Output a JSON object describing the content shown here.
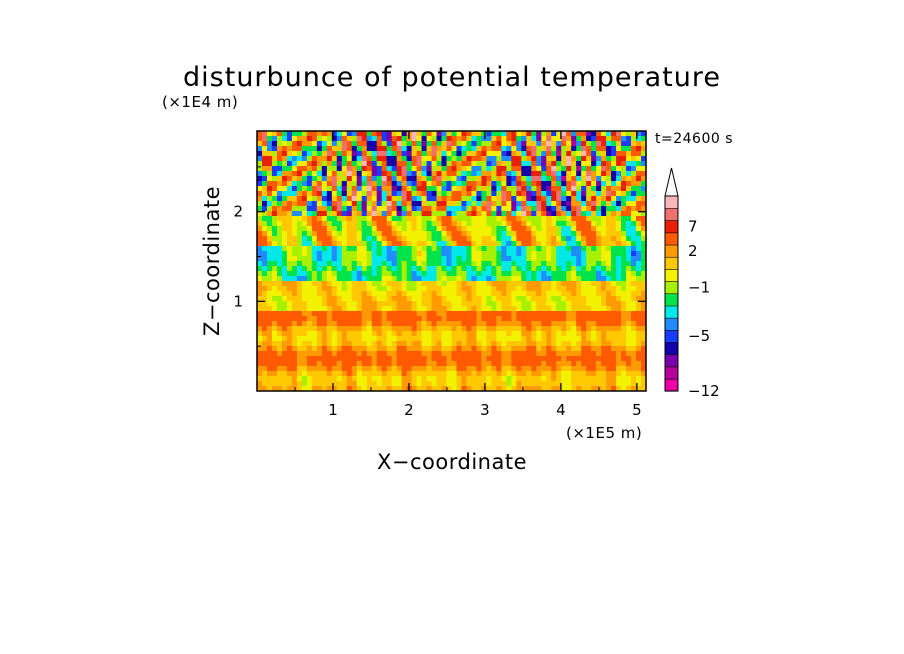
{
  "chart_data": {
    "type": "heatmap",
    "title": "disturbunce of potential temperature",
    "time_label": "t=24600 s",
    "x_axis": {
      "label": "X−coordinate",
      "unit_label": "(×1E5 m)",
      "range": [
        0,
        5.12
      ],
      "ticks": [
        1,
        2,
        3,
        4,
        5
      ],
      "tick_labels": [
        "1",
        "2",
        "3",
        "4",
        "5"
      ]
    },
    "y_axis": {
      "label": "Z−coordinate",
      "unit_label": "(×1E4 m)",
      "range": [
        0,
        2.9
      ],
      "ticks": [
        1,
        2
      ],
      "tick_labels": [
        "1",
        "2"
      ]
    },
    "colorbar": {
      "extend": "max",
      "tick_values": [
        7,
        2,
        -1,
        -5,
        -12
      ],
      "tick_labels": [
        "7",
        "2",
        "−1",
        "−5",
        "−12"
      ],
      "levels": [
        -12,
        -11,
        -9,
        -7,
        -5,
        -4,
        -3,
        -2,
        -1,
        0,
        1,
        2,
        3,
        5,
        7,
        9,
        11
      ],
      "colors": [
        "#ee00a8",
        "#b8009c",
        "#7a00aa",
        "#1400aa",
        "#1a3cff",
        "#1f8cff",
        "#00e8e8",
        "#00e34a",
        "#a6f000",
        "#f2f200",
        "#ffc800",
        "#ff9b00",
        "#ff5a00",
        "#e82000",
        "#f07070",
        "#f8b8b8"
      ],
      "over_color": "#ffffff"
    }
  }
}
